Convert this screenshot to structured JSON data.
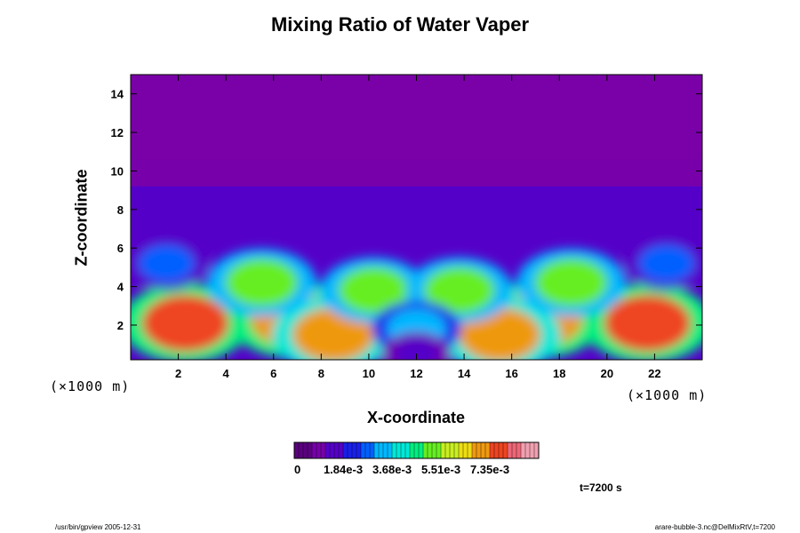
{
  "chart_data": {
    "type": "heatmap",
    "title": "Mixing Ratio of Water Vaper",
    "xlabel": "X-coordinate",
    "ylabel": "Z-coordinate",
    "x_unit": "(×1000 m)",
    "y_unit": "(×1000 m)",
    "xlim": [
      0,
      24
    ],
    "ylim": [
      0.2,
      15
    ],
    "x_ticks": [
      "2",
      "4",
      "6",
      "8",
      "10",
      "12",
      "14",
      "16",
      "18",
      "20",
      "22"
    ],
    "y_ticks": [
      "2",
      "4",
      "6",
      "8",
      "10",
      "12",
      "14"
    ],
    "colorbar": {
      "min": 0,
      "max": 0.0092,
      "tick_labels": [
        "0",
        "1.84e-3",
        "3.68e-3",
        "5.51e-3",
        "7.35e-3"
      ],
      "colors": [
        "#5a007f",
        "#7700aa",
        "#5500c8",
        "#1a20e8",
        "#0060ff",
        "#00b8ff",
        "#00e8d8",
        "#00ee80",
        "#66ee22",
        "#c8ee22",
        "#eedd11",
        "#ee9911",
        "#ee4422",
        "#ee6677",
        "#f0a0b0"
      ]
    },
    "field_note": "symmetric about x=12; moist plumes below 8, dry layer above",
    "features": [
      {
        "x": 2.3,
        "z": 2.1,
        "value": 0.0075
      },
      {
        "x": 21.7,
        "z": 2.1,
        "value": 0.0075
      },
      {
        "x": 6.8,
        "z": 2.3,
        "value": 0.0072
      },
      {
        "x": 17.2,
        "z": 2.3,
        "value": 0.0072
      },
      {
        "x": 8.5,
        "z": 1.5,
        "value": 0.0068
      },
      {
        "x": 15.5,
        "z": 1.5,
        "value": 0.0068
      },
      {
        "x": 5.5,
        "z": 4.2,
        "value": 0.0055
      },
      {
        "x": 18.5,
        "z": 4.2,
        "value": 0.0055
      },
      {
        "x": 10.2,
        "z": 3.8,
        "value": 0.0052
      },
      {
        "x": 13.8,
        "z": 3.8,
        "value": 0.0052
      },
      {
        "x": 1.5,
        "z": 5.2,
        "value": 0.003
      },
      {
        "x": 22.5,
        "z": 5.2,
        "value": 0.003
      },
      {
        "x": 12.0,
        "z": 1.8,
        "value": 0.0035
      },
      {
        "x": 12.0,
        "z": 0.5,
        "value": 0.0015
      }
    ],
    "time_label": "t=7200 s"
  },
  "footer": {
    "left": "/usr/bin/gpview 2005-12-31",
    "right": "arare-bubble-3.nc@DelMixRtV,t=7200"
  }
}
